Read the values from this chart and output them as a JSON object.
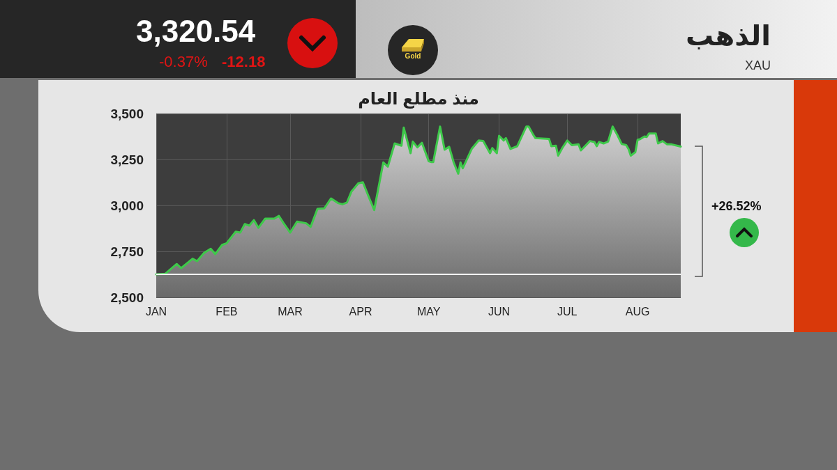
{
  "chart_data": {
    "type": "area",
    "title": "الذهب",
    "subtitle": "XAU",
    "annotations": [
      "3,320.54",
      "-0.37%",
      "-12.18",
      "منذ مطلع العام",
      "Gold",
      "+26.52%"
    ],
    "x": [
      "--01-01",
      "--01-05",
      "--01-10",
      "--01-12",
      "--01-17",
      "--01-19",
      "--01-22",
      "--01-25",
      "--01-27",
      "--01-30",
      "--02-01",
      "--02-05",
      "--02-07",
      "--02-09",
      "--02-11",
      "--02-13",
      "--02-15",
      "--02-18",
      "--02-22",
      "--02-24",
      "--02-26",
      "--03-01",
      "--03-04",
      "--03-08",
      "--03-10",
      "--03-13",
      "--03-16",
      "--03-19",
      "--03-22",
      "--03-24",
      "--03-26",
      "--03-28",
      "--03-31",
      "--04-02",
      "--04-05",
      "--04-07",
      "--04-11",
      "--04-13",
      "--04-16",
      "--04-19",
      "--04-20",
      "--04-23",
      "--04-24",
      "--04-26",
      "--04-28",
      "--05-01",
      "--05-02",
      "--05-03",
      "--05-06",
      "--05-08",
      "--05-10",
      "--05-12",
      "--05-14",
      "--05-15",
      "--05-16",
      "--05-20",
      "--05-23",
      "--05-25",
      "--05-28",
      "--05-29",
      "--05-31",
      "--06-01",
      "--06-03",
      "--06-04",
      "--06-06",
      "--06-09",
      "--06-13",
      "--06-14",
      "--06-16",
      "--06-17",
      "--06-23",
      "--06-24",
      "--06-26",
      "--06-27",
      "--06-29",
      "--07-01",
      "--07-03",
      "--07-06",
      "--07-07",
      "--07-11",
      "--07-13",
      "--07-14",
      "--07-15",
      "--07-17",
      "--07-19",
      "--07-21",
      "--07-23",
      "--07-25",
      "--07-27",
      "--07-28",
      "--07-29",
      "--07-31",
      "--08-01",
      "--08-02",
      "--08-04",
      "--08-05",
      "--08-06",
      "--08-09",
      "--08-10",
      "--08-12",
      "--08-14",
      "--08-16",
      "--08-20"
    ],
    "series": [
      {
        "color": "#3ec94a",
        "values": [
          2625,
          2628,
          2681,
          2659,
          2710,
          2697,
          2741,
          2764,
          2735,
          2785,
          2794,
          2857,
          2852,
          2899,
          2890,
          2920,
          2878,
          2928,
          2928,
          2943,
          2905,
          2852,
          2912,
          2903,
          2883,
          2981,
          2984,
          3038,
          3013,
          3006,
          3016,
          3076,
          3120,
          3126,
          3034,
          2975,
          3234,
          3211,
          3337,
          3325,
          3423,
          3284,
          3347,
          3316,
          3341,
          3240,
          3236,
          3236,
          3429,
          3303,
          3319,
          3234,
          3173,
          3234,
          3202,
          3309,
          3353,
          3350,
          3284,
          3312,
          3284,
          3379,
          3353,
          3366,
          3307,
          3322,
          3429,
          3429,
          3385,
          3366,
          3362,
          3322,
          3325,
          3271,
          3316,
          3353,
          3328,
          3332,
          3299,
          3350,
          3345,
          3322,
          3345,
          3337,
          3347,
          3429,
          3385,
          3334,
          3328,
          3307,
          3271,
          3290,
          3357,
          3360,
          3375,
          3372,
          3391,
          3391,
          3337,
          3350,
          3332,
          3332,
          3320
        ]
      }
    ],
    "xlim": [
      "--01-01",
      "--08-20"
    ],
    "xticks": [
      {
        "value": "--01-01",
        "label": "JAN"
      },
      {
        "value": "--02-01",
        "label": "FEB"
      },
      {
        "value": "--03-01",
        "label": "MAR"
      },
      {
        "value": "--04-01",
        "label": "APR"
      },
      {
        "value": "--05-01",
        "label": "MAY"
      },
      {
        "value": "--06-01",
        "label": "JUN"
      },
      {
        "value": "--07-01",
        "label": "JUL"
      },
      {
        "value": "--08-01",
        "label": "AUG"
      }
    ],
    "ylim": [
      2500,
      3500
    ],
    "yticks": [
      {
        "value": 2500,
        "label": "2,500"
      },
      {
        "value": 2750,
        "label": "2,750"
      },
      {
        "value": 3000,
        "label": "3,000"
      },
      {
        "value": 3250,
        "label": "3,250"
      },
      {
        "value": 3500,
        "label": "3,500"
      }
    ],
    "ref_lines": [
      {
        "axis": "y",
        "value": 2625,
        "color": "#ffffff"
      }
    ],
    "grid": true,
    "marker": "none",
    "line_style": "solid"
  }
}
